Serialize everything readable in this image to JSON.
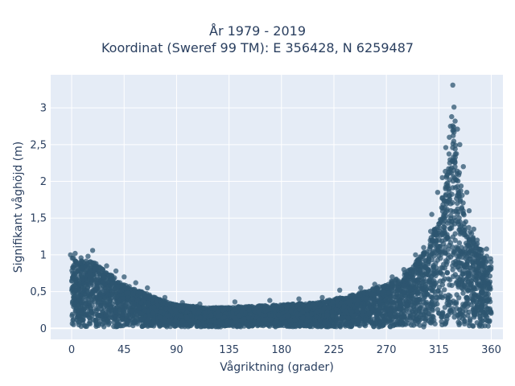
{
  "chart_data": {
    "type": "scatter",
    "title": "År 1979 - 2019",
    "subtitle": "Koordinat (Sweref 99 TM): E 356428, N 6259487",
    "xlabel": "Vågriktning (grader)",
    "ylabel": "Signifikant våghöjd (m)",
    "xlim": [
      -18,
      370
    ],
    "ylim": [
      -0.15,
      3.45
    ],
    "xticks": [
      0,
      45,
      90,
      135,
      180,
      225,
      270,
      315,
      360
    ],
    "xtick_labels": [
      "0",
      "45",
      "90",
      "135",
      "180",
      "225",
      "270",
      "315",
      "360"
    ],
    "yticks": [
      0,
      0.5,
      1,
      1.5,
      2,
      2.5,
      3
    ],
    "ytick_labels": [
      "0",
      "0,5",
      "1",
      "1,5",
      "2",
      "2,5",
      "3"
    ],
    "grid": true,
    "marker_color": "#2e5670",
    "background": "#e5ecf6",
    "envelope": [
      {
        "x": 0,
        "y": 0.98
      },
      {
        "x": 10,
        "y": 0.92
      },
      {
        "x": 20,
        "y": 0.9
      },
      {
        "x": 30,
        "y": 0.78
      },
      {
        "x": 45,
        "y": 0.6
      },
      {
        "x": 60,
        "y": 0.5
      },
      {
        "x": 75,
        "y": 0.4
      },
      {
        "x": 90,
        "y": 0.32
      },
      {
        "x": 120,
        "y": 0.28
      },
      {
        "x": 150,
        "y": 0.3
      },
      {
        "x": 180,
        "y": 0.32
      },
      {
        "x": 210,
        "y": 0.35
      },
      {
        "x": 240,
        "y": 0.45
      },
      {
        "x": 270,
        "y": 0.6
      },
      {
        "x": 290,
        "y": 0.8
      },
      {
        "x": 305,
        "y": 1.1
      },
      {
        "x": 315,
        "y": 1.5
      },
      {
        "x": 322,
        "y": 2.3
      },
      {
        "x": 327,
        "y": 2.85
      },
      {
        "x": 332,
        "y": 2.2
      },
      {
        "x": 340,
        "y": 1.4
      },
      {
        "x": 350,
        "y": 1.1
      },
      {
        "x": 360,
        "y": 0.95
      }
    ],
    "outliers": [
      {
        "x": 327,
        "y": 3.31
      },
      {
        "x": 328,
        "y": 3.01
      },
      {
        "x": 326,
        "y": 2.88
      },
      {
        "x": 329,
        "y": 2.82
      },
      {
        "x": 325,
        "y": 2.75
      },
      {
        "x": 331,
        "y": 2.71
      },
      {
        "x": 324,
        "y": 2.6
      },
      {
        "x": 333,
        "y": 2.5
      },
      {
        "x": 321,
        "y": 2.46
      },
      {
        "x": 336,
        "y": 2.2
      },
      {
        "x": 318,
        "y": 2.05
      },
      {
        "x": 339,
        "y": 1.85
      },
      {
        "x": 314,
        "y": 1.85
      },
      {
        "x": 341,
        "y": 1.6
      },
      {
        "x": 309,
        "y": 1.55
      },
      {
        "x": 308,
        "y": 1.32
      },
      {
        "x": 345,
        "y": 1.35
      },
      {
        "x": 302,
        "y": 1.1
      },
      {
        "x": 348,
        "y": 1.2
      },
      {
        "x": 356,
        "y": 1.08
      },
      {
        "x": 295,
        "y": 1.0
      },
      {
        "x": 285,
        "y": 0.8
      },
      {
        "x": 275,
        "y": 0.7
      },
      {
        "x": 260,
        "y": 0.6
      },
      {
        "x": 248,
        "y": 0.55
      },
      {
        "x": 230,
        "y": 0.52
      },
      {
        "x": 215,
        "y": 0.42
      },
      {
        "x": 195,
        "y": 0.4
      },
      {
        "x": 170,
        "y": 0.38
      },
      {
        "x": 140,
        "y": 0.36
      },
      {
        "x": 110,
        "y": 0.33
      },
      {
        "x": 95,
        "y": 0.35
      },
      {
        "x": 80,
        "y": 0.42
      },
      {
        "x": 65,
        "y": 0.55
      },
      {
        "x": 55,
        "y": 0.62
      },
      {
        "x": 45,
        "y": 0.7
      },
      {
        "x": 38,
        "y": 0.78
      },
      {
        "x": 30,
        "y": 0.85
      },
      {
        "x": 25,
        "y": 0.82
      },
      {
        "x": 18,
        "y": 1.06
      },
      {
        "x": 14,
        "y": 0.98
      },
      {
        "x": 8,
        "y": 0.96
      },
      {
        "x": 3,
        "y": 1.02
      },
      {
        "x": -1,
        "y": 1.0
      }
    ]
  }
}
